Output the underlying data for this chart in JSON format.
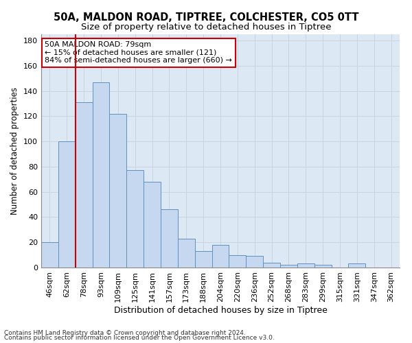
{
  "title": "50A, MALDON ROAD, TIPTREE, COLCHESTER, CO5 0TT",
  "subtitle": "Size of property relative to detached houses in Tiptree",
  "xlabel": "Distribution of detached houses by size in Tiptree",
  "ylabel": "Number of detached properties",
  "categories": [
    "46sqm",
    "62sqm",
    "78sqm",
    "93sqm",
    "109sqm",
    "125sqm",
    "141sqm",
    "157sqm",
    "173sqm",
    "188sqm",
    "204sqm",
    "220sqm",
    "236sqm",
    "252sqm",
    "268sqm",
    "283sqm",
    "299sqm",
    "315sqm",
    "331sqm",
    "347sqm",
    "362sqm"
  ],
  "values": [
    20,
    100,
    131,
    147,
    122,
    77,
    68,
    46,
    23,
    13,
    18,
    10,
    9,
    4,
    2,
    3,
    2,
    0,
    3,
    0,
    0
  ],
  "bar_color": "#c5d8f0",
  "bar_edge_color": "#6090c0",
  "bar_edge_width": 0.7,
  "red_line_index": 2,
  "red_line_color": "#cc0000",
  "annotation_text": "50A MALDON ROAD: 79sqm\n← 15% of detached houses are smaller (121)\n84% of semi-detached houses are larger (660) →",
  "annotation_box_color": "#ffffff",
  "annotation_box_edge": "#cc0000",
  "footer1": "Contains HM Land Registry data © Crown copyright and database right 2024.",
  "footer2": "Contains public sector information licensed under the Open Government Licence v3.0.",
  "ylim": [
    0,
    185
  ],
  "yticks": [
    0,
    20,
    40,
    60,
    80,
    100,
    120,
    140,
    160,
    180
  ],
  "grid_color": "#c8d4e0",
  "bg_color": "#dce8f4",
  "fig_color": "#ffffff",
  "title_fontsize": 10.5,
  "subtitle_fontsize": 9.5,
  "tick_fontsize": 8,
  "ylabel_fontsize": 8.5,
  "xlabel_fontsize": 9,
  "annotation_fontsize": 8,
  "footer_fontsize": 6.5
}
